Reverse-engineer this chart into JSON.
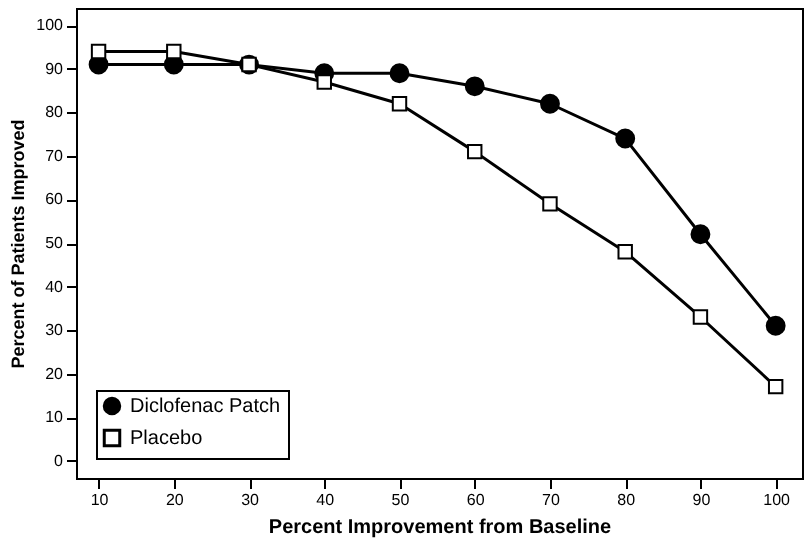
{
  "chart_data": {
    "type": "line",
    "xlabel": "Percent Improvement from Baseline",
    "ylabel": "Percent of Patients Improved",
    "x": [
      10,
      20,
      30,
      40,
      50,
      60,
      70,
      80,
      90,
      100
    ],
    "series": [
      {
        "name": "Diclofenac Patch",
        "color": "#000000",
        "marker": "circle",
        "values": [
          91,
          91,
          91,
          89,
          89,
          86,
          82,
          74,
          52,
          31
        ]
      },
      {
        "name": "Placebo",
        "color": "#000000",
        "marker": "square",
        "values": [
          94,
          94,
          91,
          87,
          82,
          71,
          59,
          48,
          33,
          17
        ]
      }
    ],
    "xlim": [
      7,
      103.5
    ],
    "xticks": [
      10,
      20,
      30,
      40,
      50,
      60,
      70,
      80,
      90,
      100
    ],
    "ylim": [
      -4,
      104
    ],
    "yticks": [
      0,
      10,
      20,
      30,
      40,
      50,
      60,
      70,
      80,
      90,
      100
    ],
    "grid": false,
    "legend": "bottom left",
    "line_style": "solid"
  }
}
